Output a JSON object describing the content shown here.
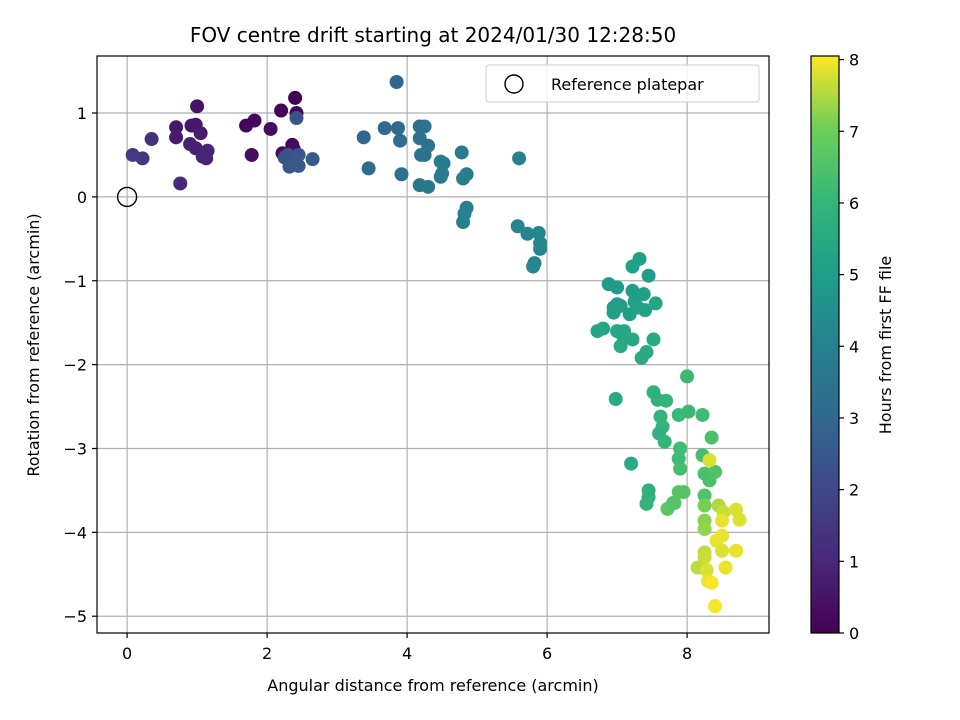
{
  "chart_data": {
    "type": "scatter",
    "title": "FOV centre drift starting at 2024/01/30 12:28:50",
    "xlabel": "Angular distance from reference (arcmin)",
    "ylabel": "Rotation from reference (arcmin)",
    "xlim": [
      -0.43,
      9.17
    ],
    "ylim": [
      -5.2,
      1.68
    ],
    "xticks": [
      0,
      2,
      4,
      6,
      8
    ],
    "yticks": [
      1,
      0,
      -1,
      -2,
      -3,
      -4,
      -5
    ],
    "xtick_labels": [
      "0",
      "2",
      "4",
      "6",
      "8"
    ],
    "ytick_labels": [
      "1",
      "0",
      "−1",
      "−2",
      "−3",
      "−4",
      "−5"
    ],
    "grid": true,
    "legend": {
      "position": "top-right",
      "label": "Reference platepar"
    },
    "reference_point": {
      "x": 0,
      "y": 0
    },
    "colorbar": {
      "label": "Hours from first FF file",
      "range": [
        0,
        8.05
      ],
      "ticks": [
        0,
        1,
        2,
        3,
        4,
        5,
        6,
        7,
        8
      ],
      "tick_labels": [
        "0",
        "1",
        "2",
        "3",
        "4",
        "5",
        "6",
        "7",
        "8"
      ],
      "colormap": "viridis"
    },
    "points": [
      [
        2.4,
        1.18,
        0.0
      ],
      [
        2.2,
        1.03,
        0.1
      ],
      [
        2.42,
        1.0,
        0.2
      ],
      [
        1.82,
        0.91,
        0.2
      ],
      [
        1.7,
        0.85,
        0.1
      ],
      [
        2.05,
        0.81,
        0.3
      ],
      [
        2.36,
        0.62,
        0.2
      ],
      [
        2.38,
        0.57,
        0.3
      ],
      [
        2.22,
        0.52,
        0.3
      ],
      [
        1.78,
        0.5,
        0.3
      ],
      [
        2.3,
        0.48,
        0.4
      ],
      [
        1.0,
        1.08,
        0.5
      ],
      [
        0.92,
        0.85,
        0.5
      ],
      [
        0.7,
        0.83,
        0.6
      ],
      [
        0.98,
        0.86,
        0.6
      ],
      [
        1.05,
        0.76,
        0.7
      ],
      [
        0.7,
        0.71,
        0.7
      ],
      [
        0.9,
        0.63,
        0.8
      ],
      [
        0.98,
        0.58,
        0.8
      ],
      [
        1.15,
        0.55,
        0.9
      ],
      [
        1.08,
        0.48,
        0.9
      ],
      [
        1.13,
        0.46,
        0.9
      ],
      [
        0.76,
        0.16,
        1.0
      ],
      [
        0.35,
        0.69,
        1.3
      ],
      [
        0.22,
        0.46,
        1.5
      ],
      [
        0.08,
        0.5,
        1.6
      ],
      [
        2.42,
        0.94,
        2.3
      ],
      [
        2.3,
        0.5,
        2.4
      ],
      [
        2.45,
        0.5,
        2.4
      ],
      [
        2.25,
        0.47,
        2.3
      ],
      [
        2.32,
        0.36,
        2.5
      ],
      [
        2.45,
        0.37,
        2.5
      ],
      [
        2.65,
        0.45,
        2.6
      ],
      [
        3.85,
        1.37,
        3.0
      ],
      [
        3.38,
        0.71,
        3.0
      ],
      [
        3.68,
        0.82,
        3.1
      ],
      [
        3.87,
        0.82,
        3.1
      ],
      [
        3.9,
        0.67,
        3.2
      ],
      [
        3.45,
        0.34,
        3.2
      ],
      [
        3.92,
        0.27,
        3.3
      ],
      [
        4.18,
        0.84,
        3.3
      ],
      [
        4.25,
        0.84,
        3.4
      ],
      [
        4.18,
        0.7,
        3.4
      ],
      [
        4.3,
        0.61,
        3.5
      ],
      [
        4.25,
        0.5,
        3.5
      ],
      [
        4.2,
        0.5,
        3.5
      ],
      [
        4.18,
        0.14,
        3.6
      ],
      [
        4.3,
        0.12,
        3.6
      ],
      [
        4.48,
        0.42,
        3.7
      ],
      [
        4.52,
        0.4,
        3.7
      ],
      [
        4.48,
        0.24,
        3.7
      ],
      [
        4.5,
        0.28,
        3.8
      ],
      [
        4.78,
        0.53,
        3.8
      ],
      [
        4.8,
        0.22,
        3.9
      ],
      [
        4.85,
        0.27,
        3.9
      ],
      [
        4.85,
        -0.13,
        3.9
      ],
      [
        4.82,
        -0.2,
        4.0
      ],
      [
        4.8,
        -0.3,
        4.0
      ],
      [
        5.6,
        0.46,
        4.0
      ],
      [
        5.58,
        -0.35,
        4.1
      ],
      [
        5.72,
        -0.44,
        4.1
      ],
      [
        5.88,
        -0.43,
        4.2
      ],
      [
        5.9,
        -0.55,
        4.2
      ],
      [
        5.9,
        -0.62,
        4.2
      ],
      [
        5.82,
        -0.79,
        4.1
      ],
      [
        5.8,
        -0.83,
        4.2
      ],
      [
        6.88,
        -1.04,
        4.9
      ],
      [
        7.0,
        -1.08,
        4.9
      ],
      [
        7.32,
        -0.74,
        5.1
      ],
      [
        7.22,
        -0.83,
        5.1
      ],
      [
        7.45,
        -0.94,
        5.0
      ],
      [
        7.22,
        -1.12,
        5.0
      ],
      [
        7.38,
        -1.16,
        5.1
      ],
      [
        7.0,
        -1.28,
        5.1
      ],
      [
        6.95,
        -1.32,
        5.0
      ],
      [
        7.05,
        -1.3,
        5.0
      ],
      [
        7.25,
        -1.25,
        5.1
      ],
      [
        7.3,
        -1.32,
        5.2
      ],
      [
        7.18,
        -1.4,
        5.1
      ],
      [
        6.95,
        -1.38,
        5.1
      ],
      [
        7.4,
        -1.35,
        5.2
      ],
      [
        7.55,
        -1.27,
        5.3
      ],
      [
        6.8,
        -1.57,
        5.3
      ],
      [
        6.72,
        -1.6,
        5.3
      ],
      [
        7.0,
        -1.6,
        5.4
      ],
      [
        7.1,
        -1.6,
        5.4
      ],
      [
        7.08,
        -1.65,
        5.4
      ],
      [
        7.22,
        -1.7,
        5.4
      ],
      [
        7.52,
        -1.7,
        5.5
      ],
      [
        7.05,
        -1.78,
        5.5
      ],
      [
        7.42,
        -1.85,
        5.5
      ],
      [
        7.35,
        -1.92,
        5.5
      ],
      [
        6.98,
        -2.41,
        5.5
      ],
      [
        7.2,
        -3.18,
        5.5
      ],
      [
        7.52,
        -2.33,
        5.8
      ],
      [
        7.58,
        -2.42,
        5.8
      ],
      [
        7.7,
        -2.43,
        5.9
      ],
      [
        7.62,
        -2.62,
        5.9
      ],
      [
        7.65,
        -2.74,
        5.9
      ],
      [
        7.6,
        -2.82,
        5.8
      ],
      [
        7.68,
        -2.92,
        5.9
      ],
      [
        7.45,
        -3.5,
        5.8
      ],
      [
        7.45,
        -3.58,
        5.8
      ],
      [
        7.42,
        -3.66,
        5.9
      ],
      [
        8.0,
        -2.14,
        6.1
      ],
      [
        8.02,
        -2.56,
        6.1
      ],
      [
        7.88,
        -2.6,
        6.1
      ],
      [
        8.22,
        -2.6,
        6.2
      ],
      [
        7.9,
        -3.0,
        6.2
      ],
      [
        7.88,
        -3.12,
        6.2
      ],
      [
        7.9,
        -3.24,
        6.3
      ],
      [
        8.22,
        -3.08,
        6.3
      ],
      [
        8.35,
        -2.87,
        6.4
      ],
      [
        8.25,
        -3.3,
        6.4
      ],
      [
        8.32,
        -3.38,
        6.4
      ],
      [
        8.4,
        -3.28,
        6.5
      ],
      [
        8.25,
        -3.56,
        6.5
      ],
      [
        7.8,
        -3.65,
        6.5
      ],
      [
        7.88,
        -3.52,
        6.6
      ],
      [
        7.95,
        -3.52,
        6.6
      ],
      [
        7.72,
        -3.72,
        6.7
      ],
      [
        7.82,
        -3.65,
        6.6
      ],
      [
        8.25,
        -3.68,
        7.1
      ],
      [
        8.32,
        -3.14,
        7.8
      ],
      [
        8.25,
        -3.86,
        7.2
      ],
      [
        8.25,
        -3.96,
        7.3
      ],
      [
        8.45,
        -3.68,
        7.5
      ],
      [
        8.52,
        -3.76,
        7.7
      ],
      [
        8.7,
        -3.73,
        7.8
      ],
      [
        8.75,
        -3.85,
        7.8
      ],
      [
        8.5,
        -3.86,
        7.9
      ],
      [
        8.5,
        -4.04,
        7.9
      ],
      [
        8.42,
        -4.1,
        7.9
      ],
      [
        8.5,
        -4.22,
        7.8
      ],
      [
        8.7,
        -4.22,
        7.9
      ],
      [
        8.25,
        -4.24,
        7.6
      ],
      [
        8.25,
        -4.3,
        7.7
      ],
      [
        8.15,
        -4.42,
        7.6
      ],
      [
        8.28,
        -4.45,
        7.8
      ],
      [
        8.55,
        -4.42,
        7.9
      ],
      [
        8.3,
        -4.58,
        7.9
      ],
      [
        8.35,
        -4.6,
        8.0
      ],
      [
        8.4,
        -4.88,
        8.0
      ]
    ]
  }
}
